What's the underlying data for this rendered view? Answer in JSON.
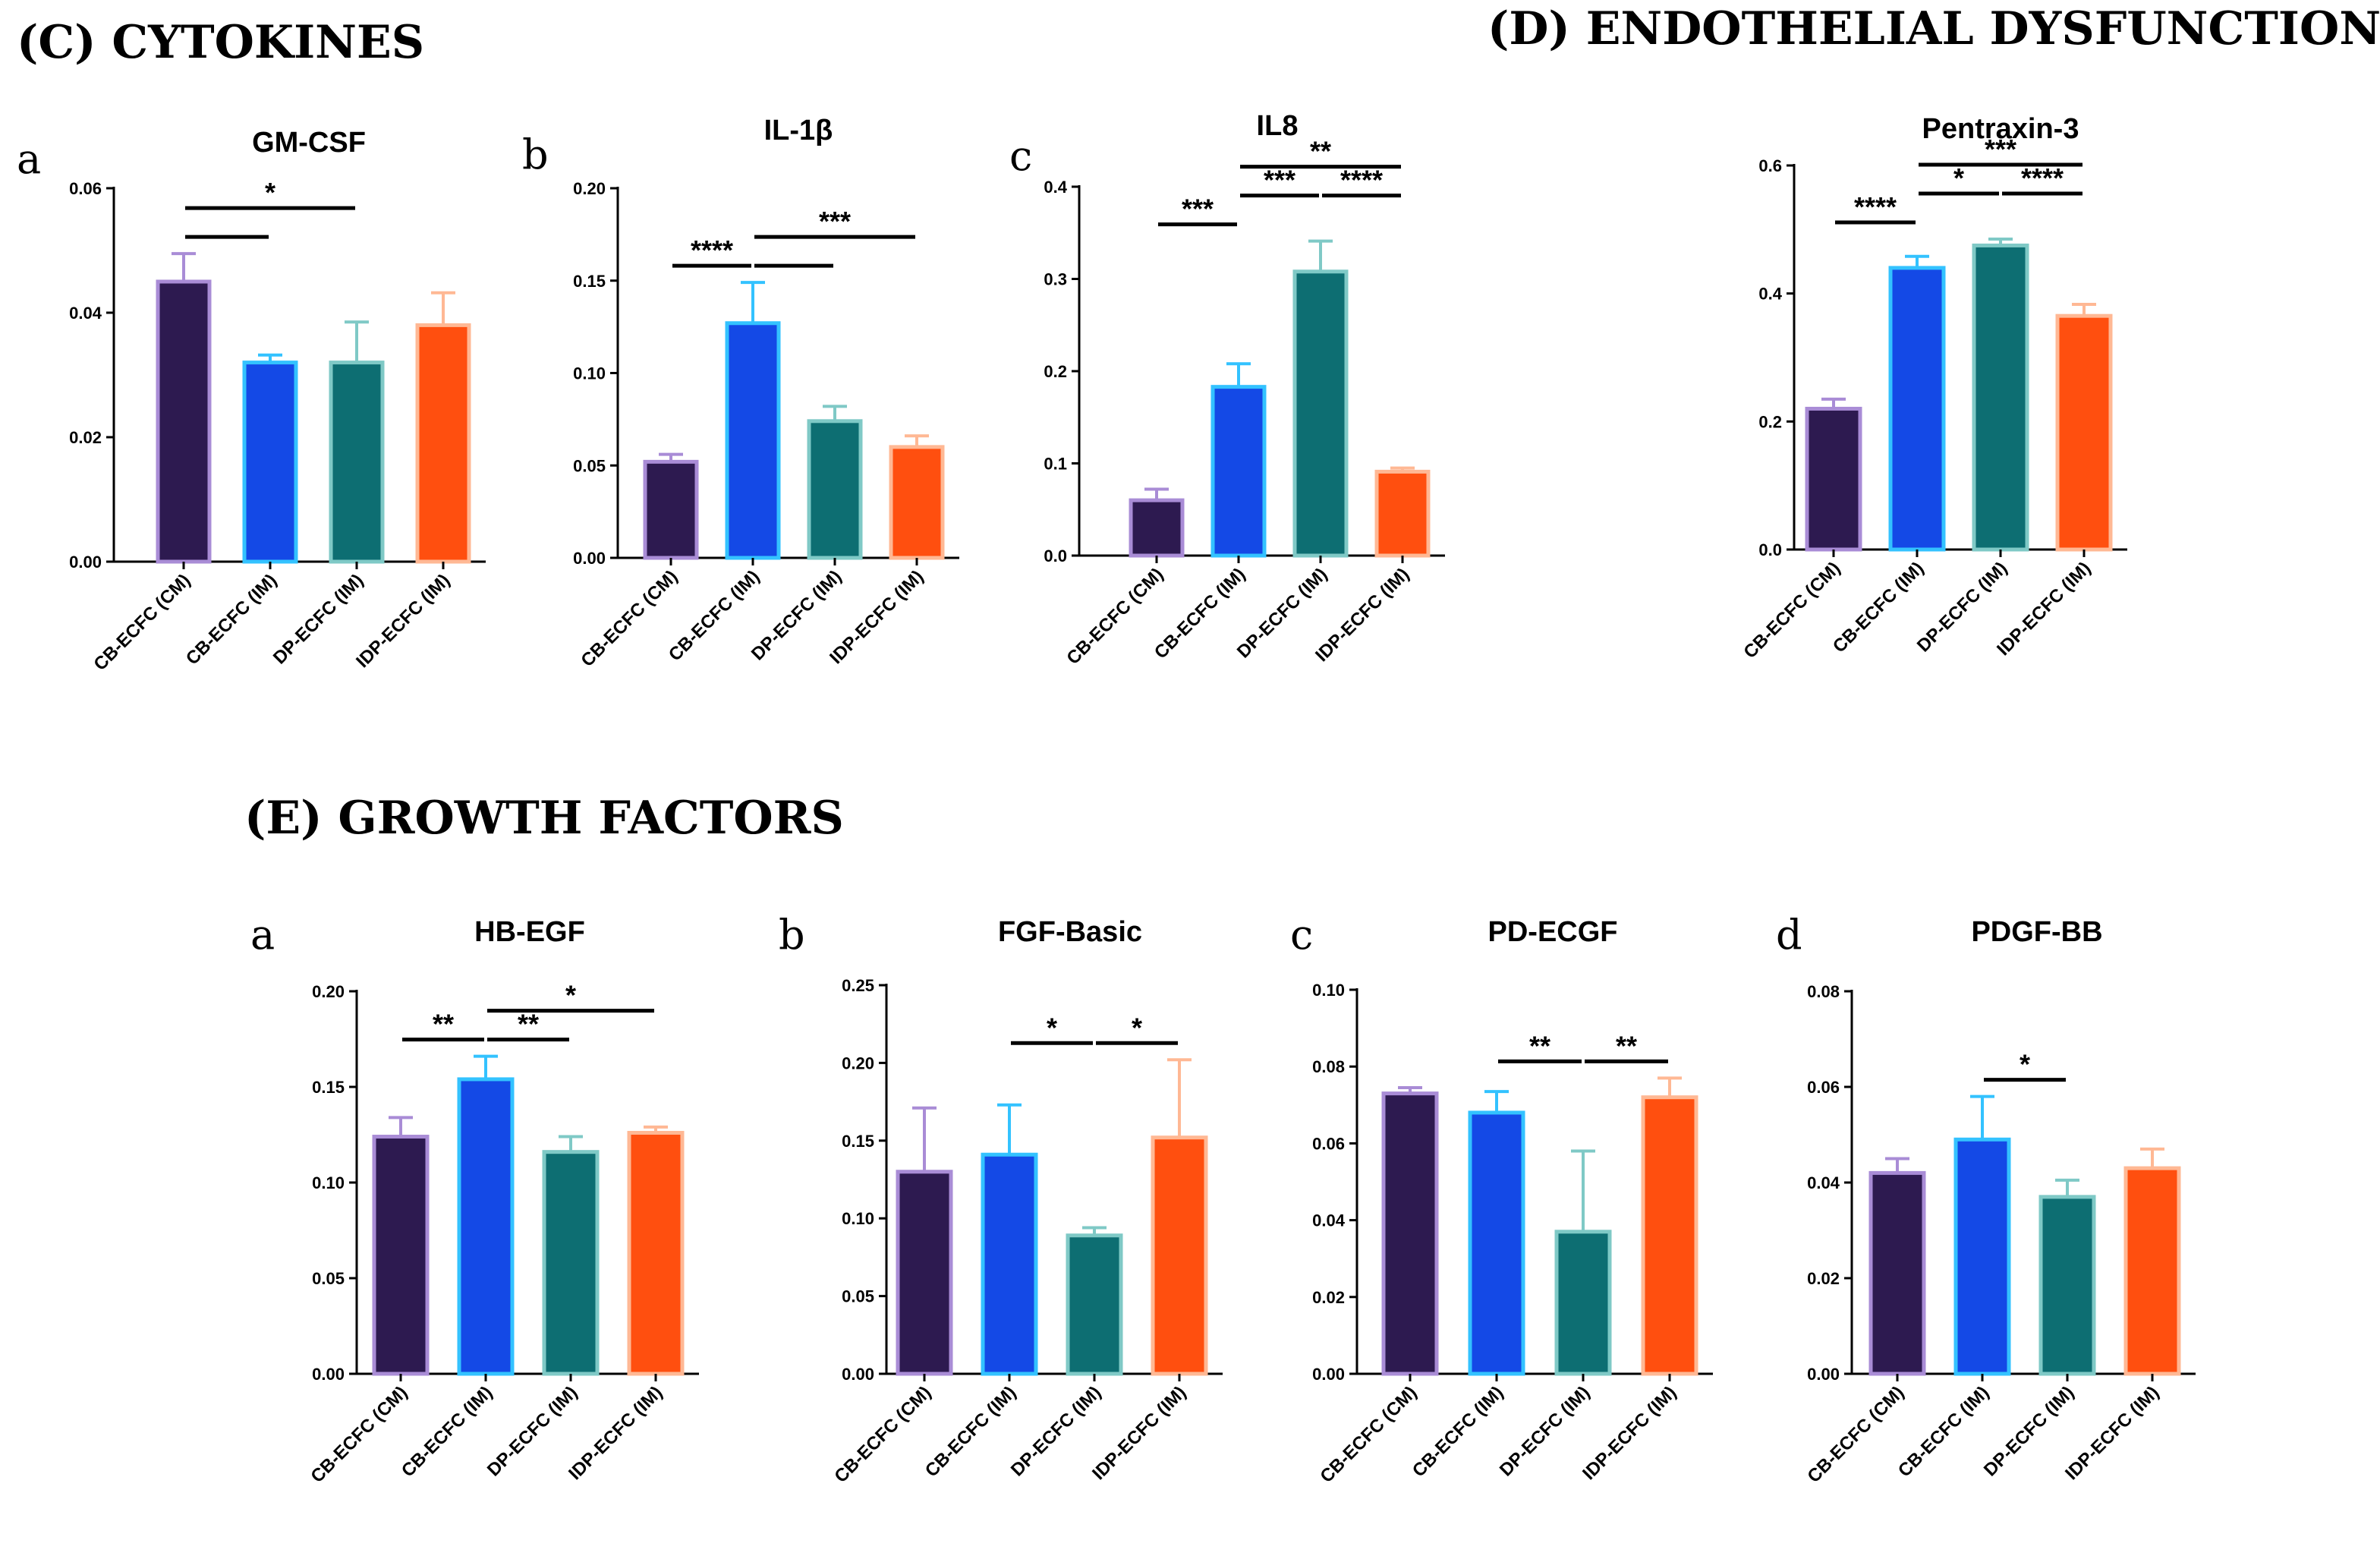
{
  "sections": {
    "cytokines": "(C) CYTOKINES",
    "endothelial": "(D) ENDOTHELIAL  DYSFUNCTION",
    "growth": "(E) GROWTH FACTORS"
  },
  "colors": {
    "bars": [
      "#2d1a50",
      "#1449e6",
      "#0d6e72",
      "#ff4f0f"
    ],
    "borders": [
      "#a98cd6",
      "#33c2ff",
      "#7fc9c6",
      "#ffb894"
    ]
  },
  "chart_data": [
    {
      "id": "gmcsf",
      "letter": "a",
      "type": "bar",
      "title": "GM-CSF",
      "categories": [
        "CB-ECFC (CM)",
        "CB-ECFC (IM)",
        "DP-ECFC (IM)",
        "IDP-ECFC (IM)"
      ],
      "values": [
        0.045,
        0.032,
        0.032,
        0.038
      ],
      "errors": [
        0.0045,
        0.0012,
        0.0065,
        0.0052
      ],
      "ylim": [
        0,
        0.06
      ],
      "yticks": [
        "0.00",
        "0.02",
        "0.04",
        "0.06"
      ],
      "significance": [
        {
          "label": "",
          "from": 0,
          "to": 1,
          "level": 0
        },
        {
          "label": "*",
          "from": 0,
          "to": 2,
          "level": 1
        }
      ]
    },
    {
      "id": "il1b",
      "letter": "b",
      "type": "bar",
      "title": "IL-1β",
      "categories": [
        "CB-ECFC (CM)",
        "CB-ECFC (IM)",
        "DP-ECFC (IM)",
        "IDP-ECFC (IM)"
      ],
      "values": [
        0.052,
        0.127,
        0.074,
        0.06
      ],
      "errors": [
        0.004,
        0.022,
        0.008,
        0.006
      ],
      "ylim": [
        0,
        0.2
      ],
      "yticks": [
        "0.00",
        "0.05",
        "0.10",
        "0.15",
        "0.20"
      ],
      "significance": [
        {
          "label": "****",
          "from": 0,
          "to": 1,
          "level": 0
        },
        {
          "label": "",
          "from": 1,
          "to": 2,
          "level": 0
        },
        {
          "label": "***",
          "from": 1,
          "to": 3,
          "level": 1
        }
      ]
    },
    {
      "id": "il8",
      "letter": "c",
      "type": "bar",
      "title": "IL8",
      "categories": [
        "CB-ECFC (CM)",
        "CB-ECFC (IM)",
        "DP-ECFC (IM)",
        "IDP-ECFC (IM)"
      ],
      "values": [
        0.06,
        0.183,
        0.308,
        0.091
      ],
      "errors": [
        0.012,
        0.025,
        0.033,
        0.004
      ],
      "ylim": [
        0,
        0.4
      ],
      "yticks": [
        "0.0",
        "0.1",
        "0.2",
        "0.3",
        "0.4"
      ],
      "significance": [
        {
          "label": "***",
          "from": 0,
          "to": 1,
          "level": 0
        },
        {
          "label": "***",
          "from": 1,
          "to": 2,
          "level": 1
        },
        {
          "label": "****",
          "from": 2,
          "to": 3,
          "level": 1
        },
        {
          "label": "**",
          "from": 1,
          "to": 3,
          "level": 2
        }
      ]
    },
    {
      "id": "ptx3",
      "letter": "",
      "type": "bar",
      "title": "Pentraxin-3",
      "categories": [
        "CB-ECFC (CM)",
        "CB-ECFC (IM)",
        "DP-ECFC (IM)",
        "IDP-ECFC (IM)"
      ],
      "values": [
        0.22,
        0.44,
        0.475,
        0.365
      ],
      "errors": [
        0.015,
        0.018,
        0.01,
        0.018
      ],
      "ylim": [
        0,
        0.6
      ],
      "yticks": [
        "0.0",
        "0.2",
        "0.4",
        "0.6"
      ],
      "significance": [
        {
          "label": "****",
          "from": 0,
          "to": 1,
          "level": 0
        },
        {
          "label": "*",
          "from": 1,
          "to": 2,
          "level": 1
        },
        {
          "label": "****",
          "from": 2,
          "to": 3,
          "level": 1
        },
        {
          "label": "***",
          "from": 1,
          "to": 3,
          "level": 2
        }
      ]
    },
    {
      "id": "hbegf",
      "letter": "a",
      "type": "bar",
      "title": "HB-EGF",
      "categories": [
        "CB-ECFC (CM)",
        "CB-ECFC (IM)",
        "DP-ECFC (IM)",
        "IDP-ECFC (IM)"
      ],
      "values": [
        0.124,
        0.154,
        0.116,
        0.126
      ],
      "errors": [
        0.01,
        0.012,
        0.008,
        0.003
      ],
      "ylim": [
        0,
        0.2
      ],
      "yticks": [
        "0.00",
        "0.05",
        "0.10",
        "0.15",
        "0.20"
      ],
      "significance": [
        {
          "label": "**",
          "from": 0,
          "to": 1,
          "level": 0
        },
        {
          "label": "**",
          "from": 1,
          "to": 2,
          "level": 0
        },
        {
          "label": "*",
          "from": 1,
          "to": 3,
          "level": 1
        }
      ]
    },
    {
      "id": "fgfb",
      "letter": "b",
      "type": "bar",
      "title": "FGF-Basic",
      "categories": [
        "CB-ECFC (CM)",
        "CB-ECFC (IM)",
        "DP-ECFC (IM)",
        "IDP-ECFC (IM)"
      ],
      "values": [
        0.13,
        0.141,
        0.089,
        0.152
      ],
      "errors": [
        0.041,
        0.032,
        0.005,
        0.05
      ],
      "ylim": [
        0,
        0.25
      ],
      "yticks": [
        "0.00",
        "0.05",
        "0.10",
        "0.15",
        "0.20",
        "0.25"
      ],
      "significance": [
        {
          "label": "*",
          "from": 1,
          "to": 2,
          "level": 0
        },
        {
          "label": "*",
          "from": 2,
          "to": 3,
          "level": 0
        }
      ]
    },
    {
      "id": "pdecgf",
      "letter": "c",
      "type": "bar",
      "title": "PD-ECGF",
      "categories": [
        "CB-ECFC (CM)",
        "CB-ECFC (IM)",
        "DP-ECFC (IM)",
        "IDP-ECFC (IM)"
      ],
      "values": [
        0.073,
        0.068,
        0.037,
        0.072
      ],
      "errors": [
        0.0015,
        0.0055,
        0.021,
        0.005
      ],
      "ylim": [
        0,
        0.1
      ],
      "yticks": [
        "0.00",
        "0.02",
        "0.04",
        "0.06",
        "0.08",
        "0.10"
      ],
      "significance": [
        {
          "label": "**",
          "from": 1,
          "to": 2,
          "level": 0
        },
        {
          "label": "**",
          "from": 2,
          "to": 3,
          "level": 0
        }
      ]
    },
    {
      "id": "pdgfbb",
      "letter": "d",
      "type": "bar",
      "title": "PDGF-BB",
      "categories": [
        "CB-ECFC (CM)",
        "CB-ECFC (IM)",
        "DP-ECFC (IM)",
        "IDP-ECFC (IM)"
      ],
      "values": [
        0.042,
        0.049,
        0.037,
        0.043
      ],
      "errors": [
        0.003,
        0.009,
        0.0035,
        0.004
      ],
      "ylim": [
        0,
        0.08
      ],
      "yticks": [
        "0.00",
        "0.02",
        "0.04",
        "0.06",
        "0.08"
      ],
      "significance": [
        {
          "label": "*",
          "from": 1,
          "to": 2,
          "level": 0
        }
      ]
    }
  ]
}
